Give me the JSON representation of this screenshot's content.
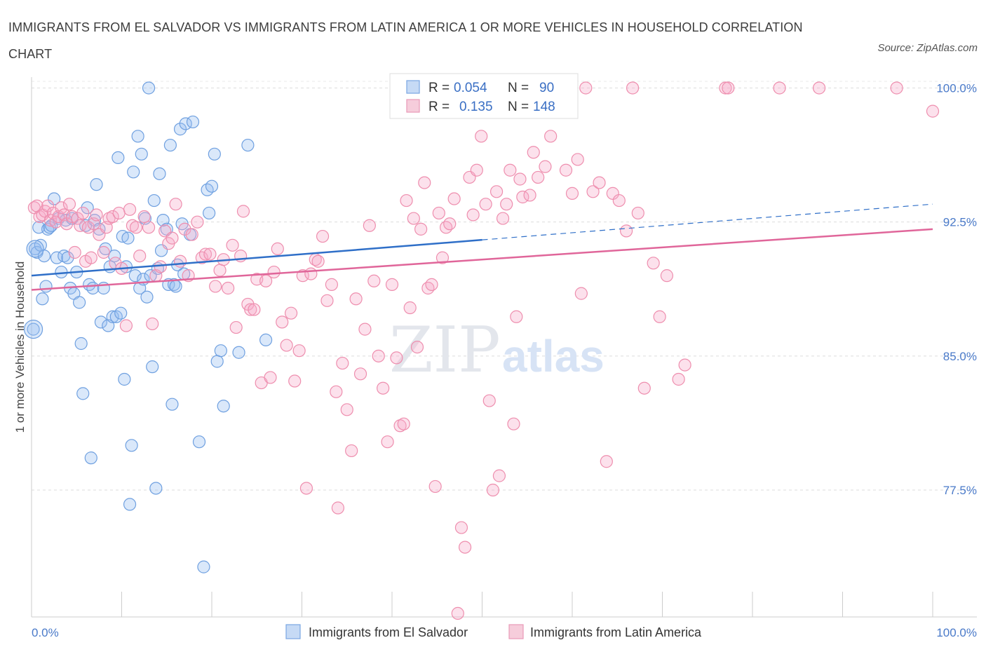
{
  "title": "IMMIGRANTS FROM EL SALVADOR VS IMMIGRANTS FROM LATIN AMERICA 1 OR MORE VEHICLES IN HOUSEHOLD CORRELATION CHART",
  "source": "Source: ZipAtlas.com",
  "watermark": {
    "zip": "ZIP",
    "atlas": "atlas"
  },
  "colors": {
    "blue": "#6fa0e0",
    "pink": "#ee8eae",
    "blue_line": "#2f6fc8",
    "pink_line": "#e0669a"
  },
  "legend": {
    "r_label": "R =",
    "n_label": "N =",
    "series1": {
      "r": "0.054",
      "n": "90"
    },
    "series2": {
      "r": "0.135",
      "n": "148"
    }
  },
  "chart_data": {
    "type": "scatter",
    "title": "IMMIGRANTS FROM EL SALVADOR VS IMMIGRANTS FROM LATIN AMERICA 1 OR MORE VEHICLES IN HOUSEHOLD CORRELATION CHART",
    "xlabel": "",
    "ylabel": "1 or more Vehicles in Household",
    "xlim": [
      0,
      100
    ],
    "ylim": [
      70.4,
      101.0
    ],
    "x_tick_labels": [
      "0.0%",
      "100.0%"
    ],
    "y_ticks": [
      77.5,
      85.0,
      92.5,
      100.0
    ],
    "y_tick_labels": [
      "77.5%",
      "85.0%",
      "92.5%",
      "100.0%"
    ],
    "grid": true,
    "legend_position": "top-center",
    "series": [
      {
        "name": "Immigrants from El Salvador",
        "color": "#6fa0e0",
        "trend": {
          "x0": 0,
          "y0": 89.5,
          "x1": 50,
          "y1": 91.5,
          "dashed_to_x": 100,
          "dashed_to_y": 93.5
        },
        "points": [
          [
            0.2,
            86.5
          ],
          [
            0.4,
            91.0
          ],
          [
            0.6,
            90.8
          ],
          [
            0.8,
            92.2
          ],
          [
            1.0,
            91.2
          ],
          [
            1.2,
            88.2
          ],
          [
            1.4,
            90.6
          ],
          [
            1.6,
            88.9
          ],
          [
            1.8,
            92.1
          ],
          [
            2.0,
            92.2
          ],
          [
            2.2,
            92.3
          ],
          [
            2.5,
            93.8
          ],
          [
            2.8,
            90.5
          ],
          [
            3.0,
            92.7
          ],
          [
            3.3,
            89.7
          ],
          [
            3.6,
            90.6
          ],
          [
            3.8,
            92.6
          ],
          [
            4.0,
            90.5
          ],
          [
            4.3,
            88.8
          ],
          [
            4.5,
            92.7
          ],
          [
            4.7,
            88.5
          ],
          [
            5.0,
            89.7
          ],
          [
            5.3,
            88.0
          ],
          [
            5.5,
            85.7
          ],
          [
            5.7,
            82.9
          ],
          [
            6.0,
            92.3
          ],
          [
            6.2,
            93.3
          ],
          [
            6.4,
            89.0
          ],
          [
            6.6,
            79.3
          ],
          [
            6.8,
            88.8
          ],
          [
            7.0,
            92.6
          ],
          [
            7.2,
            94.6
          ],
          [
            7.5,
            92.1
          ],
          [
            7.7,
            86.9
          ],
          [
            8.0,
            88.8
          ],
          [
            8.2,
            91.0
          ],
          [
            8.5,
            86.7
          ],
          [
            8.7,
            90.0
          ],
          [
            9.0,
            87.2
          ],
          [
            9.2,
            90.6
          ],
          [
            9.4,
            87.2
          ],
          [
            9.6,
            96.1
          ],
          [
            9.9,
            87.4
          ],
          [
            10.1,
            91.7
          ],
          [
            10.3,
            83.7
          ],
          [
            10.5,
            90.0
          ],
          [
            10.7,
            91.6
          ],
          [
            10.9,
            76.7
          ],
          [
            11.1,
            80.0
          ],
          [
            11.3,
            95.3
          ],
          [
            11.5,
            89.5
          ],
          [
            11.8,
            97.3
          ],
          [
            12.0,
            88.8
          ],
          [
            12.2,
            96.3
          ],
          [
            12.4,
            89.3
          ],
          [
            12.6,
            92.7
          ],
          [
            12.8,
            88.3
          ],
          [
            13.0,
            100.0
          ],
          [
            13.2,
            89.5
          ],
          [
            13.4,
            84.4
          ],
          [
            13.6,
            93.7
          ],
          [
            13.8,
            77.6
          ],
          [
            14.0,
            89.9
          ],
          [
            14.2,
            95.2
          ],
          [
            14.4,
            90.9
          ],
          [
            14.6,
            92.6
          ],
          [
            15.0,
            92.1
          ],
          [
            15.2,
            89.0
          ],
          [
            15.4,
            96.8
          ],
          [
            15.6,
            82.3
          ],
          [
            15.8,
            89.0
          ],
          [
            16.0,
            88.9
          ],
          [
            16.2,
            90.1
          ],
          [
            16.5,
            97.7
          ],
          [
            16.7,
            92.4
          ],
          [
            16.9,
            89.6
          ],
          [
            17.1,
            98.0
          ],
          [
            17.6,
            91.8
          ],
          [
            17.9,
            98.1
          ],
          [
            18.6,
            80.2
          ],
          [
            19.1,
            73.2
          ],
          [
            19.5,
            94.3
          ],
          [
            19.7,
            93.0
          ],
          [
            20.0,
            94.5
          ],
          [
            20.3,
            96.3
          ],
          [
            20.6,
            84.7
          ],
          [
            21.0,
            85.3
          ],
          [
            21.3,
            82.2
          ],
          [
            23.0,
            85.2
          ],
          [
            24.0,
            96.8
          ],
          [
            26.0,
            85.9
          ]
        ]
      },
      {
        "name": "Immigrants from Latin America",
        "color": "#ee8eae",
        "trend": {
          "x0": 0,
          "y0": 88.7,
          "x1": 100,
          "y1": 92.1
        },
        "points": [
          [
            0.3,
            93.3
          ],
          [
            0.6,
            93.4
          ],
          [
            0.9,
            92.8
          ],
          [
            1.2,
            92.9
          ],
          [
            1.5,
            93.1
          ],
          [
            1.8,
            93.4
          ],
          [
            2.1,
            92.6
          ],
          [
            2.4,
            93.0
          ],
          [
            2.7,
            92.5
          ],
          [
            3.0,
            92.8
          ],
          [
            3.3,
            93.3
          ],
          [
            3.6,
            92.9
          ],
          [
            3.9,
            92.4
          ],
          [
            4.2,
            93.5
          ],
          [
            4.5,
            92.8
          ],
          [
            4.8,
            90.8
          ],
          [
            5.1,
            92.7
          ],
          [
            5.4,
            92.3
          ],
          [
            5.7,
            93.0
          ],
          [
            6.0,
            90.3
          ],
          [
            6.3,
            92.2
          ],
          [
            6.6,
            90.5
          ],
          [
            6.9,
            92.4
          ],
          [
            7.2,
            92.9
          ],
          [
            7.5,
            91.8
          ],
          [
            8.0,
            90.8
          ],
          [
            8.3,
            92.2
          ],
          [
            8.6,
            92.7
          ],
          [
            9.0,
            92.8
          ],
          [
            9.3,
            90.2
          ],
          [
            9.7,
            93.0
          ],
          [
            10.0,
            89.9
          ],
          [
            10.5,
            86.7
          ],
          [
            10.9,
            93.2
          ],
          [
            11.2,
            92.3
          ],
          [
            11.6,
            92.2
          ],
          [
            12.0,
            90.6
          ],
          [
            12.5,
            92.8
          ],
          [
            13.0,
            92.2
          ],
          [
            13.4,
            86.8
          ],
          [
            13.8,
            89.5
          ],
          [
            14.3,
            90.0
          ],
          [
            14.8,
            92.0
          ],
          [
            15.2,
            91.3
          ],
          [
            15.6,
            91.6
          ],
          [
            16.0,
            93.5
          ],
          [
            16.5,
            90.3
          ],
          [
            17.0,
            92.1
          ],
          [
            17.4,
            89.5
          ],
          [
            17.8,
            91.8
          ],
          [
            18.4,
            92.5
          ],
          [
            18.9,
            90.5
          ],
          [
            19.3,
            90.7
          ],
          [
            19.8,
            90.7
          ],
          [
            20.4,
            88.9
          ],
          [
            20.9,
            89.8
          ],
          [
            21.3,
            90.4
          ],
          [
            21.8,
            88.8
          ],
          [
            22.3,
            91.2
          ],
          [
            22.7,
            86.6
          ],
          [
            23.2,
            90.6
          ],
          [
            23.5,
            93.1
          ],
          [
            24.0,
            87.9
          ],
          [
            24.3,
            87.6
          ],
          [
            24.7,
            87.6
          ],
          [
            25.0,
            89.3
          ],
          [
            25.5,
            83.5
          ],
          [
            26.0,
            89.2
          ],
          [
            26.5,
            83.8
          ],
          [
            26.9,
            89.7
          ],
          [
            27.3,
            91.0
          ],
          [
            27.8,
            86.9
          ],
          [
            28.3,
            85.6
          ],
          [
            28.8,
            87.4
          ],
          [
            29.2,
            83.6
          ],
          [
            29.7,
            85.3
          ],
          [
            30.1,
            89.5
          ],
          [
            30.5,
            77.6
          ],
          [
            31.0,
            89.6
          ],
          [
            31.5,
            90.4
          ],
          [
            31.8,
            90.3
          ],
          [
            32.3,
            91.7
          ],
          [
            32.8,
            88.1
          ],
          [
            33.3,
            89.0
          ],
          [
            33.8,
            83.0
          ],
          [
            34.0,
            76.5
          ],
          [
            34.5,
            84.6
          ],
          [
            35.0,
            82.0
          ],
          [
            35.5,
            79.7
          ],
          [
            36.0,
            88.2
          ],
          [
            36.5,
            84.0
          ],
          [
            37.0,
            86.5
          ],
          [
            37.5,
            92.3
          ],
          [
            38.0,
            89.2
          ],
          [
            38.5,
            85.0
          ],
          [
            39.0,
            83.2
          ],
          [
            39.5,
            80.2
          ],
          [
            40.0,
            89.0
          ],
          [
            40.5,
            84.9
          ],
          [
            40.9,
            81.1
          ],
          [
            41.3,
            81.2
          ],
          [
            41.6,
            93.7
          ],
          [
            42.0,
            87.7
          ],
          [
            42.4,
            92.7
          ],
          [
            42.8,
            85.5
          ],
          [
            43.2,
            92.1
          ],
          [
            43.6,
            94.7
          ],
          [
            44.0,
            88.8
          ],
          [
            44.4,
            89.0
          ],
          [
            44.8,
            77.7
          ],
          [
            45.2,
            93.0
          ],
          [
            45.6,
            90.5
          ],
          [
            46.0,
            92.2
          ],
          [
            46.4,
            92.4
          ],
          [
            46.9,
            93.8
          ],
          [
            47.3,
            70.6
          ],
          [
            47.7,
            75.4
          ],
          [
            48.1,
            74.3
          ],
          [
            48.6,
            95.0
          ],
          [
            49.0,
            92.9
          ],
          [
            49.4,
            95.4
          ],
          [
            49.9,
            97.3
          ],
          [
            50.4,
            93.5
          ],
          [
            50.8,
            82.5
          ],
          [
            51.2,
            77.5
          ],
          [
            51.6,
            94.2
          ],
          [
            51.9,
            78.3
          ],
          [
            52.3,
            92.7
          ],
          [
            52.7,
            93.5
          ],
          [
            53.1,
            95.4
          ],
          [
            53.5,
            81.2
          ],
          [
            53.8,
            87.2
          ],
          [
            54.2,
            94.9
          ],
          [
            54.5,
            93.9
          ],
          [
            54.9,
            100.0
          ],
          [
            55.3,
            94.0
          ],
          [
            55.7,
            96.4
          ],
          [
            56.2,
            95.0
          ],
          [
            57.0,
            95.6
          ],
          [
            57.6,
            97.3
          ],
          [
            58.3,
            99.5
          ],
          [
            58.6,
            100.0
          ],
          [
            59.3,
            95.4
          ],
          [
            60.0,
            94.1
          ],
          [
            60.6,
            96.0
          ],
          [
            61.0,
            88.5
          ],
          [
            61.5,
            100.0
          ],
          [
            62.3,
            94.2
          ],
          [
            63.0,
            94.7
          ],
          [
            63.8,
            79.1
          ],
          [
            64.5,
            94.1
          ],
          [
            65.2,
            93.7
          ],
          [
            66.0,
            92.0
          ],
          [
            66.7,
            100.0
          ],
          [
            67.3,
            93.0
          ],
          [
            68.0,
            83.2
          ],
          [
            69.0,
            90.2
          ],
          [
            69.7,
            87.2
          ],
          [
            70.5,
            89.5
          ],
          [
            71.8,
            83.7
          ],
          [
            72.5,
            84.5
          ],
          [
            77.0,
            100.0
          ],
          [
            77.3,
            100.0
          ],
          [
            83.0,
            100.0
          ],
          [
            87.4,
            100.0
          ],
          [
            96.0,
            100.0
          ],
          [
            100.0,
            98.7
          ]
        ]
      }
    ]
  },
  "bottom_legend": [
    "Immigrants from El Salvador",
    "Immigrants from Latin America"
  ]
}
